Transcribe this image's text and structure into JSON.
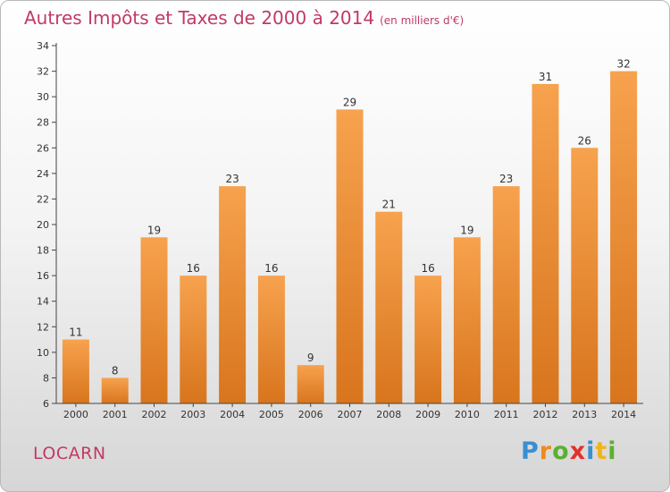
{
  "title": {
    "main": "Autres Impôts et Taxes de 2000 à 2014",
    "unit": "(en milliers d'€)"
  },
  "commune": "LOCARN",
  "logo": {
    "text": "Proxiti",
    "letters": [
      {
        "ch": "P",
        "color": "#3b8fd0"
      },
      {
        "ch": "r",
        "color": "#f08a1c"
      },
      {
        "ch": "o",
        "color": "#5bb032"
      },
      {
        "ch": "x",
        "color": "#e5302a"
      },
      {
        "ch": "i",
        "color": "#3b8fd0"
      },
      {
        "ch": "t",
        "color": "#f0b41c"
      },
      {
        "ch": "i",
        "color": "#5bb032"
      }
    ]
  },
  "colors": {
    "title": "#c23a64",
    "bar_top": "#f7a24e",
    "bar_bottom": "#d8751d",
    "axis": "#444444"
  },
  "chart_data": {
    "type": "bar",
    "title": "Autres Impôts et Taxes de 2000 à 2014",
    "unit_label": "(en milliers d'€)",
    "categories": [
      "2000",
      "2001",
      "2002",
      "2003",
      "2004",
      "2005",
      "2006",
      "2007",
      "2008",
      "2009",
      "2010",
      "2011",
      "2012",
      "2013",
      "2014"
    ],
    "values": [
      11,
      8,
      19,
      16,
      23,
      16,
      9,
      29,
      21,
      16,
      19,
      23,
      31,
      26,
      32
    ],
    "ylim": [
      6,
      34
    ],
    "yticks": [
      6,
      8,
      10,
      12,
      14,
      16,
      18,
      20,
      22,
      24,
      26,
      28,
      30,
      32,
      34
    ],
    "grid": false,
    "data_labels": true
  }
}
